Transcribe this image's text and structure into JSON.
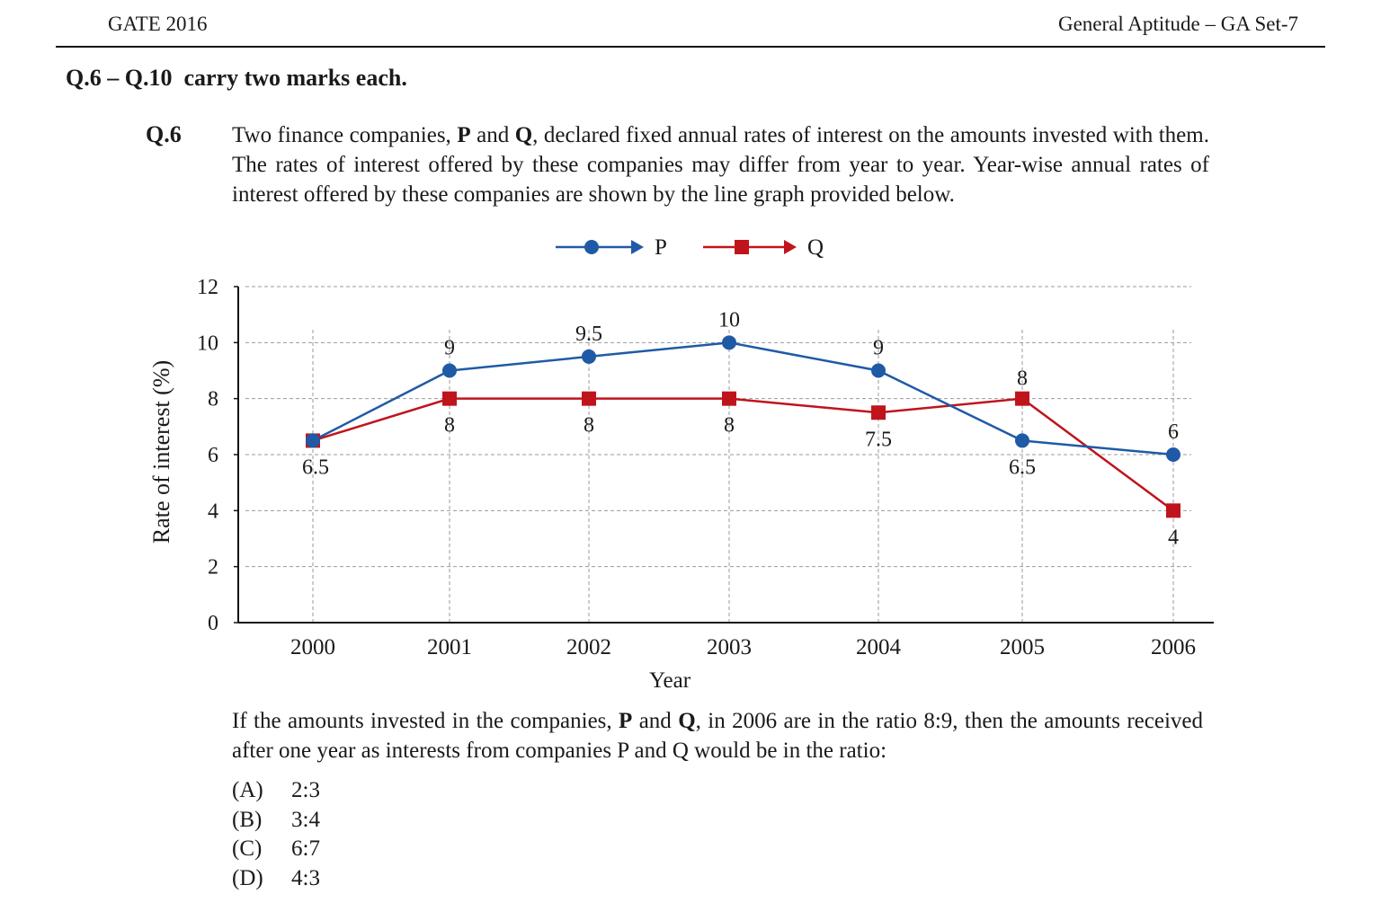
{
  "header": {
    "left": "GATE 2016",
    "right": "General Aptitude – GA Set-7"
  },
  "section_title": "Q.6 – Q.10  carry two marks each.",
  "question": {
    "number": "Q.6",
    "intro": [
      {
        "t": "Two finance companies, "
      },
      {
        "t": "P",
        "b": true
      },
      {
        "t": " and "
      },
      {
        "t": "Q",
        "b": true
      },
      {
        "t": ", declared fixed annual rates of interest on the amounts invested with them. The rates of interest offered by these companies may differ from year to year. Year-wise annual rates of interest offered by these companies are shown by the line graph provided below."
      }
    ],
    "prompt": [
      {
        "t": "If the amounts invested in the companies, "
      },
      {
        "t": "P",
        "b": true
      },
      {
        "t": " and "
      },
      {
        "t": "Q",
        "b": true
      },
      {
        "t": ", in 2006 are in the ratio 8:9, then the amounts received after one year as interests from companies P and Q would be in the ratio:"
      }
    ],
    "options": [
      {
        "label": "(A)",
        "text": "2:3"
      },
      {
        "label": "(B)",
        "text": "3:4"
      },
      {
        "label": "(C)",
        "text": "6:7"
      },
      {
        "label": "(D)",
        "text": "4:3"
      }
    ]
  },
  "chart_data": {
    "type": "line",
    "categories": [
      "2000",
      "2001",
      "2002",
      "2003",
      "2004",
      "2005",
      "2006"
    ],
    "xlabel": "Year",
    "ylabel": "Rate of interest (%)",
    "ylim": [
      0,
      12
    ],
    "yticks": [
      0,
      2,
      4,
      6,
      8,
      10,
      12
    ],
    "grid": "dashed",
    "legend_position": "top-center",
    "series": [
      {
        "name": "P",
        "color": "#1f5aa6",
        "marker": "circle",
        "values": [
          6.5,
          9,
          9.5,
          10,
          9,
          6.5,
          6
        ],
        "labels": [
          "6.5",
          "9",
          "9.5",
          "10",
          "9",
          "6.5",
          "6"
        ]
      },
      {
        "name": "Q",
        "color": "#c0141c",
        "marker": "square",
        "values": [
          6.5,
          8,
          8,
          8,
          7.5,
          8,
          4
        ],
        "labels": [
          "",
          "8",
          "8",
          "8",
          "7.5",
          "8",
          "4"
        ]
      }
    ]
  }
}
